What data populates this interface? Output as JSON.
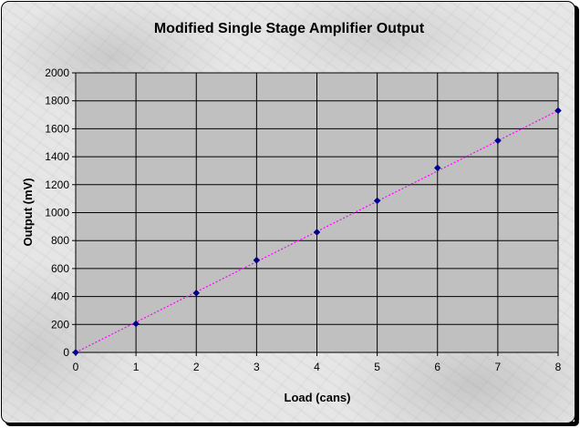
{
  "chart_data": {
    "type": "scatter",
    "title": "Modified Single Stage Amplifier Output",
    "xlabel": "Load (cans)",
    "ylabel": "Output (mV)",
    "xlim": [
      0,
      8
    ],
    "ylim": [
      0,
      2000
    ],
    "x_ticks": [
      0,
      1,
      2,
      3,
      4,
      5,
      6,
      7,
      8
    ],
    "y_ticks": [
      0,
      200,
      400,
      600,
      800,
      1000,
      1200,
      1400,
      1600,
      1800,
      2000
    ],
    "grid": true,
    "legend": "none",
    "series": [
      {
        "x": [
          0,
          1,
          2,
          3,
          4,
          5,
          6,
          7,
          8
        ],
        "y": [
          0,
          205,
          425,
          660,
          860,
          1085,
          1320,
          1515,
          1730
        ],
        "marker": "diamond",
        "color": "#00008b"
      }
    ],
    "trendline": {
      "type": "linear",
      "style": "dotted",
      "color": "#ff00ff",
      "from": [
        0,
        0
      ],
      "to": [
        8,
        1730
      ]
    },
    "plot_background": "#c0c0c0"
  }
}
